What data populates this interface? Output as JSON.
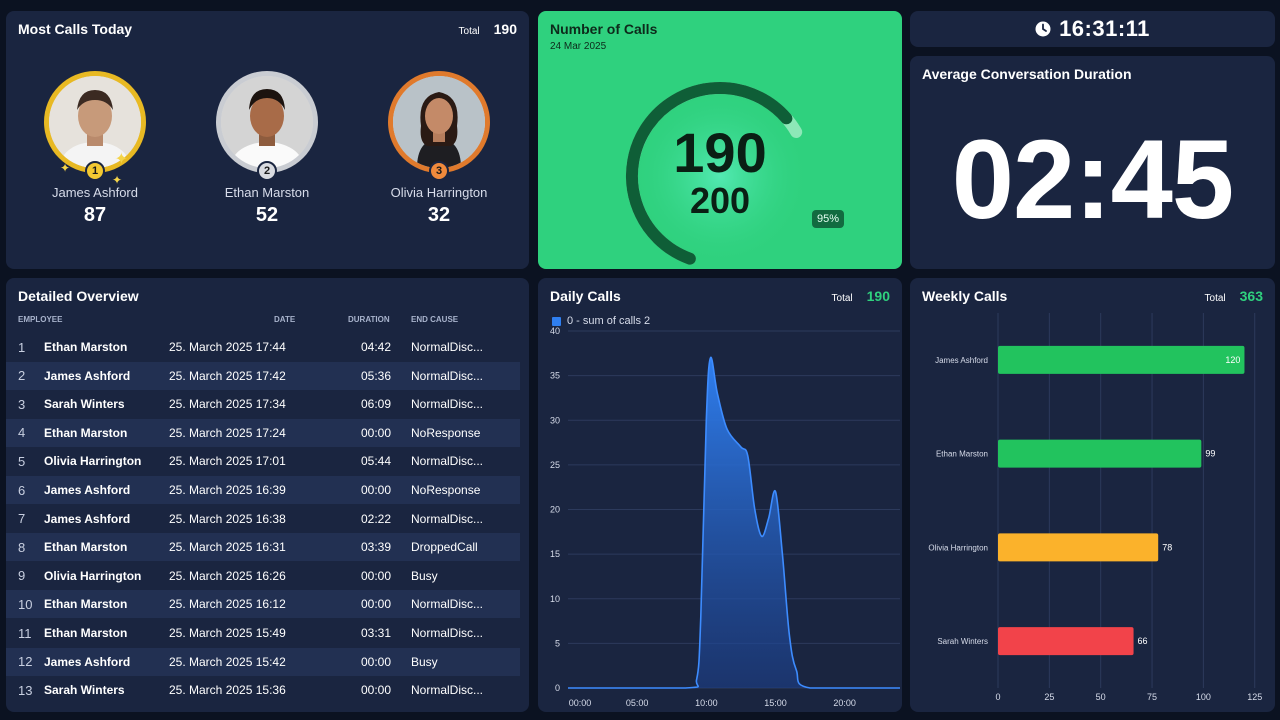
{
  "most_calls": {
    "title": "Most Calls Today",
    "total_label": "Total",
    "total_value": "190",
    "leaders": [
      {
        "rank": "1",
        "name": "James Ashford",
        "count": "87"
      },
      {
        "rank": "2",
        "name": "Ethan Marston",
        "count": "52"
      },
      {
        "rank": "3",
        "name": "Olivia Harrington",
        "count": "32"
      }
    ]
  },
  "number_of_calls": {
    "title": "Number of Calls",
    "date": "24 Mar 2025",
    "value": "190",
    "target": "200",
    "percent_label": "95%",
    "percent": 0.95
  },
  "clock": {
    "time": "16:31:11",
    "icon": "clock-icon"
  },
  "avg_duration": {
    "title": "Average Conversation Duration",
    "value": "02:45"
  },
  "detailed": {
    "title": "Detailed Overview",
    "headers": {
      "employee": "EMPLOYEE",
      "date": "DATE",
      "duration": "DURATION",
      "end_cause": "END CAUSE"
    },
    "rows": [
      {
        "n": "1",
        "employee": "Ethan Marston",
        "date": "25. March 2025 17:44",
        "duration": "04:42",
        "end_cause": "NormalDisc..."
      },
      {
        "n": "2",
        "employee": "James Ashford",
        "date": "25. March 2025 17:42",
        "duration": "05:36",
        "end_cause": "NormalDisc..."
      },
      {
        "n": "3",
        "employee": "Sarah Winters",
        "date": "25. March 2025 17:34",
        "duration": "06:09",
        "end_cause": "NormalDisc..."
      },
      {
        "n": "4",
        "employee": "Ethan Marston",
        "date": "25. March 2025 17:24",
        "duration": "00:00",
        "end_cause": "NoResponse"
      },
      {
        "n": "5",
        "employee": "Olivia Harrington",
        "date": "25. March 2025 17:01",
        "duration": "05:44",
        "end_cause": "NormalDisc..."
      },
      {
        "n": "6",
        "employee": "James Ashford",
        "date": "25. March 2025 16:39",
        "duration": "00:00",
        "end_cause": "NoResponse"
      },
      {
        "n": "7",
        "employee": "James Ashford",
        "date": "25. March 2025 16:38",
        "duration": "02:22",
        "end_cause": "NormalDisc..."
      },
      {
        "n": "8",
        "employee": "Ethan Marston",
        "date": "25. March 2025 16:31",
        "duration": "03:39",
        "end_cause": "DroppedCall"
      },
      {
        "n": "9",
        "employee": "Olivia Harrington",
        "date": "25. March 2025 16:26",
        "duration": "00:00",
        "end_cause": "Busy"
      },
      {
        "n": "10",
        "employee": "Ethan Marston",
        "date": "25. March 2025 16:12",
        "duration": "00:00",
        "end_cause": "NormalDisc..."
      },
      {
        "n": "11",
        "employee": "Ethan Marston",
        "date": "25. March 2025 15:49",
        "duration": "03:31",
        "end_cause": "NormalDisc..."
      },
      {
        "n": "12",
        "employee": "James Ashford",
        "date": "25. March 2025 15:42",
        "duration": "00:00",
        "end_cause": "Busy"
      },
      {
        "n": "13",
        "employee": "Sarah Winters",
        "date": "25. March 2025 15:36",
        "duration": "00:00",
        "end_cause": "NormalDisc..."
      }
    ]
  },
  "daily": {
    "title": "Daily Calls",
    "total_label": "Total",
    "total_value": "190",
    "legend": "0 - sum of calls 2"
  },
  "weekly": {
    "title": "Weekly Calls",
    "total_label": "Total",
    "total_value": "363"
  },
  "colors": {
    "accent_green": "#2fd17e",
    "panel": "#1a2540",
    "gold": "#e8b923",
    "silver": "#c9ccd2",
    "bronze": "#e07a2c",
    "blue": "#2f7ff0",
    "bar_green": "#22c35e",
    "bar_orange": "#fbb22b",
    "bar_red": "#f2434a"
  },
  "chart_data": [
    {
      "type": "area",
      "title": "Daily Calls",
      "series": [
        {
          "name": "0 - sum of calls 2",
          "x": [
            0,
            8.5,
            9.3,
            9.6,
            10,
            10.3,
            10.8,
            11.5,
            12.5,
            13,
            13.5,
            14,
            14.5,
            15,
            15.5,
            16,
            16.5,
            17.5,
            24
          ],
          "values": [
            0,
            0,
            1,
            8,
            30,
            37,
            33,
            29,
            27,
            26,
            20,
            17,
            19,
            22,
            15,
            6,
            2,
            0,
            0
          ]
        }
      ],
      "xticks": [
        "00:00",
        "05:00",
        "10:00",
        "15:00",
        "20:00"
      ],
      "xlim": [
        0,
        24
      ],
      "ylim": [
        0,
        40
      ],
      "yticks": [
        0,
        5,
        10,
        15,
        20,
        25,
        30,
        35,
        40
      ],
      "grid": true
    },
    {
      "type": "bar",
      "orientation": "horizontal",
      "title": "Weekly Calls",
      "categories": [
        "James Ashford",
        "Ethan Marston",
        "Olivia Harrington",
        "Sarah Winters"
      ],
      "values": [
        120,
        99,
        78,
        66
      ],
      "bar_colors": [
        "#22c35e",
        "#22c35e",
        "#fbb22b",
        "#f2434a"
      ],
      "xlim": [
        0,
        130
      ],
      "xticks": [
        0,
        25,
        50,
        75,
        100,
        125
      ],
      "grid": true
    }
  ]
}
